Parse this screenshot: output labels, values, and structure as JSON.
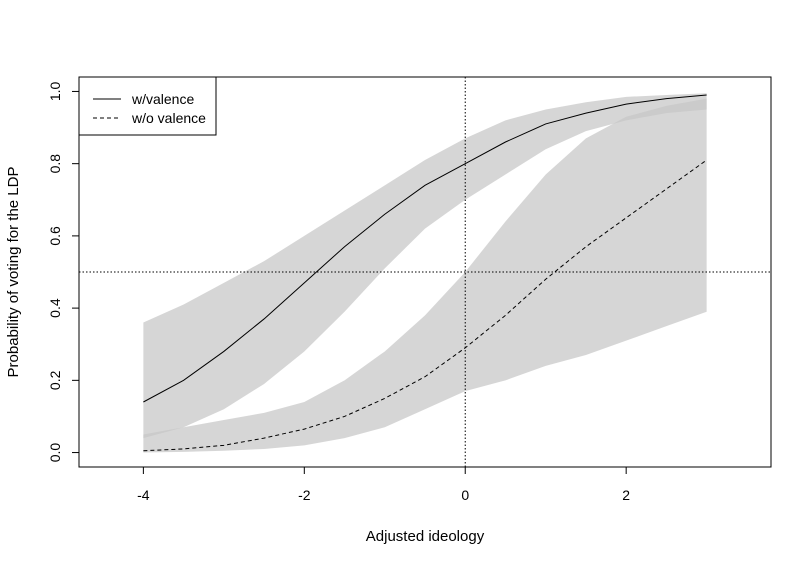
{
  "chart_data": {
    "type": "line",
    "title": "",
    "xlabel": "Adjusted ideology",
    "ylabel": "Probability of voting for the LDP",
    "xlim": [
      -4.8,
      3.8
    ],
    "ylim": [
      -0.04,
      1.04
    ],
    "xticks": [
      -4,
      -2,
      0,
      2
    ],
    "xtick_labels": [
      "-4",
      "-2",
      "0",
      "2"
    ],
    "yticks": [
      0.0,
      0.2,
      0.4,
      0.6,
      0.8,
      1.0
    ],
    "ytick_labels": [
      "0.0",
      "0.2",
      "0.4",
      "0.6",
      "0.8",
      "1.0"
    ],
    "grid": false,
    "legend": {
      "position": "top-left"
    },
    "reference_lines": {
      "x": 0,
      "y": 0.5
    },
    "colors": {
      "band": "#d9d9d9",
      "band_overlap": "#c6c6c6",
      "line": "#000000"
    },
    "series": [
      {
        "name": "w/valence",
        "style": "solid",
        "x": [
          -4,
          -3.5,
          -3,
          -2.5,
          -2,
          -1.5,
          -1,
          -0.5,
          0,
          0.5,
          1,
          1.5,
          2,
          2.5,
          3
        ],
        "y": [
          0.14,
          0.2,
          0.28,
          0.37,
          0.47,
          0.57,
          0.66,
          0.74,
          0.8,
          0.86,
          0.91,
          0.94,
          0.965,
          0.98,
          0.99
        ],
        "lower": [
          0.04,
          0.07,
          0.12,
          0.19,
          0.28,
          0.39,
          0.51,
          0.62,
          0.7,
          0.77,
          0.84,
          0.89,
          0.92,
          0.94,
          0.95
        ],
        "upper": [
          0.36,
          0.41,
          0.47,
          0.53,
          0.6,
          0.67,
          0.74,
          0.81,
          0.87,
          0.92,
          0.95,
          0.97,
          0.985,
          0.99,
          0.995
        ]
      },
      {
        "name": "w/o valence",
        "style": "dashed",
        "x": [
          -4,
          -3.5,
          -3,
          -2.5,
          -2,
          -1.5,
          -1,
          -0.5,
          0,
          0.5,
          1,
          1.5,
          2,
          2.5,
          3
        ],
        "y": [
          0.005,
          0.01,
          0.02,
          0.04,
          0.065,
          0.1,
          0.15,
          0.21,
          0.29,
          0.38,
          0.48,
          0.57,
          0.65,
          0.73,
          0.81
        ],
        "lower": [
          0.0,
          0.002,
          0.005,
          0.01,
          0.02,
          0.04,
          0.07,
          0.12,
          0.17,
          0.2,
          0.24,
          0.27,
          0.31,
          0.35,
          0.39
        ],
        "upper": [
          0.05,
          0.07,
          0.09,
          0.11,
          0.14,
          0.2,
          0.28,
          0.38,
          0.5,
          0.64,
          0.77,
          0.87,
          0.93,
          0.96,
          0.98
        ]
      }
    ]
  }
}
